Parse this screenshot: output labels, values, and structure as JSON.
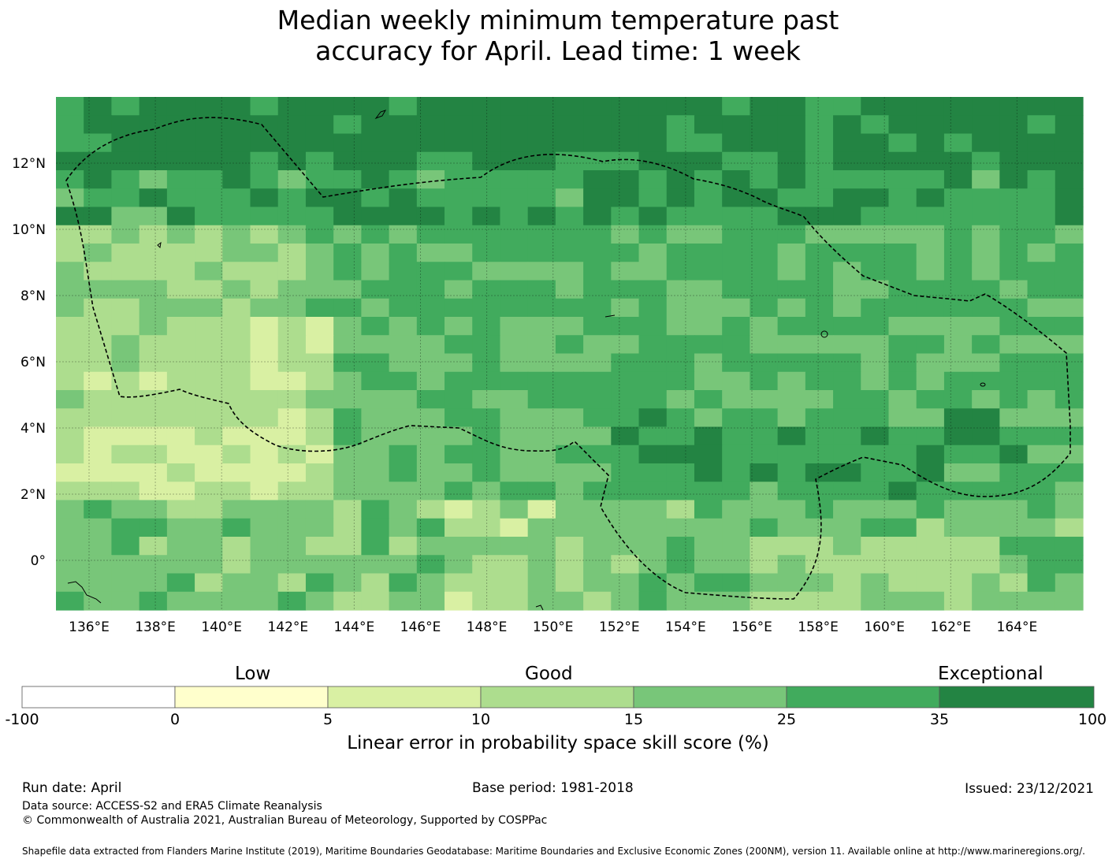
{
  "title": {
    "line1": "Median weekly minimum temperature past",
    "line2": "accuracy for April. Lead time: 1 week"
  },
  "map": {
    "lon_labels": [
      "136°E",
      "138°E",
      "140°E",
      "142°E",
      "144°E",
      "146°E",
      "148°E",
      "150°E",
      "152°E",
      "154°E",
      "156°E",
      "158°E",
      "160°E",
      "162°E",
      "164°E"
    ],
    "lat_labels": [
      "12°N",
      "10°N",
      "8°N",
      "6°N",
      "4°N",
      "2°N",
      "0°"
    ],
    "lon_range": [
      134.0,
      166.0
    ],
    "lat_range": [
      -1.5,
      14.0
    ],
    "gridlines": true,
    "colormap": "green-skill",
    "eez_boundary": "dashed black (Federated States of Micronesia)"
  },
  "colorbar": {
    "categories": [
      "Low",
      "Good",
      "Exceptional"
    ],
    "ticks": [
      "-100",
      "0",
      "5",
      "10",
      "15",
      "25",
      "35",
      "100"
    ],
    "colors": [
      "#ffffff",
      "#ffffcc",
      "#d9f0a3",
      "#addd8e",
      "#78c679",
      "#41ab5d",
      "#238443"
    ],
    "label": "Linear error in probability space skill score (%)"
  },
  "footer": {
    "run_date": "Run date: April",
    "base_period": "Base period: 1981-2018",
    "issued": "Issued: 23/12/2021",
    "data_source": "Data source: ACCESS-S2 and ERA5 Climate Reanalysis",
    "copyright": "© Commonwealth of Australia 2021, Australian Bureau of Meteorology, Supported by COSPPac",
    "shapefile": "Shapefile data extracted from Flanders Marine Institute (2019), Maritime Boundaries Geodatabase: Maritime Boundaries and Exclusive Economic Zones (200NM), version 11. Available online at http://www.marineregions.org/."
  }
}
